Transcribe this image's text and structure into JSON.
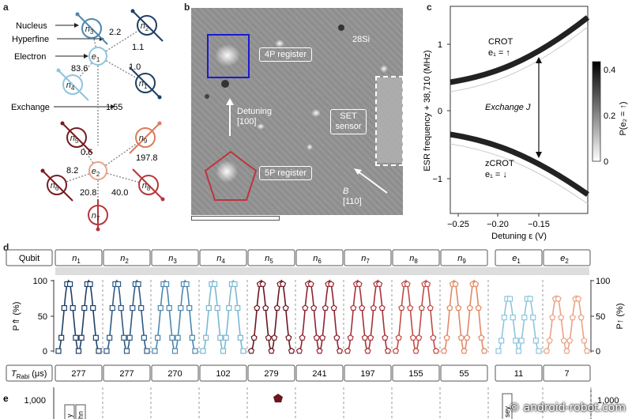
{
  "panel_labels": {
    "a": "a",
    "b": "b",
    "c": "c",
    "d": "d",
    "e": "e"
  },
  "panel_a": {
    "left_labels": {
      "nucleus": "Nucleus",
      "hyperfine": "Hyperfine",
      "electron": "Electron",
      "exchange": "Exchange"
    },
    "nodes": {
      "n1": "n",
      "n2": "n",
      "n3": "n",
      "n4": "n",
      "n5": "n",
      "n6": "n",
      "n7": "n",
      "n8": "n",
      "n9": "n",
      "e1": "e",
      "e2": "e"
    },
    "subs": {
      "n1": "1",
      "n2": "2",
      "n3": "3",
      "n4": "4",
      "n5": "5",
      "n6": "6",
      "n7": "7",
      "n8": "8",
      "n9": "9",
      "e1": "1",
      "e2": "2"
    },
    "values": {
      "n3": "2.2",
      "n2": "1.1",
      "n4": "83.6",
      "n1": "1.0",
      "exchange": "1.55",
      "n5": "0.6",
      "n9": "197.8",
      "n6": "8.2",
      "n8": "40.0",
      "n7_left": "20.8"
    },
    "colors": {
      "dark_blue": "#1f3f66",
      "mid_blue": "#4d87b0",
      "light_blue": "#8ec6dc",
      "dark_red": "#7a1a22",
      "red": "#b5373c",
      "salmon": "#dd7a5a",
      "peach": "#e9a384"
    }
  },
  "panel_b": {
    "isotope": "28Si",
    "reg4p": "4P register",
    "reg5p": "5P register",
    "set_sensor": "SET sensor",
    "detuning": "Detuning",
    "detuning_dir": "[100]",
    "b_label": "B",
    "b_dir": "[110]"
  },
  "panel_c": {
    "ylabel": "ESR frequency + 38,710 (MHz)",
    "xlabel": "Detuning ε (V)",
    "xticks": [
      "−0.25",
      "−0.20",
      "−0.15"
    ],
    "yticks": [
      "1",
      "0",
      "−1"
    ],
    "crot": "CROT",
    "crot_state": "e₁ = ↑",
    "zcrot": "zCROT",
    "zcrot_state": "e₁ = ↓",
    "exchange": "Exchange J",
    "cbar_label": "P(e₂ = ↑)",
    "cbar_ticks": [
      "0.4",
      "0.2",
      "0"
    ]
  },
  "panel_d": {
    "qubit_header": "Qubit",
    "qubits": [
      {
        "name": "n",
        "sub": "1",
        "color": "#1f3f66",
        "marker": "square",
        "trabi": "277"
      },
      {
        "name": "n",
        "sub": "2",
        "color": "#2e5a85",
        "marker": "square",
        "trabi": "277"
      },
      {
        "name": "n",
        "sub": "3",
        "color": "#4d87b0",
        "marker": "square",
        "trabi": "270"
      },
      {
        "name": "n",
        "sub": "4",
        "color": "#7bb8d2",
        "marker": "square",
        "trabi": "102"
      },
      {
        "name": "n",
        "sub": "5",
        "color": "#6b1620",
        "marker": "pentagon",
        "trabi": "279"
      },
      {
        "name": "n",
        "sub": "6",
        "color": "#8e2330",
        "marker": "pentagon",
        "trabi": "241"
      },
      {
        "name": "n",
        "sub": "7",
        "color": "#a63139",
        "marker": "pentagon",
        "trabi": "197"
      },
      {
        "name": "n",
        "sub": "8",
        "color": "#c04a45",
        "marker": "pentagon",
        "trabi": "155"
      },
      {
        "name": "n",
        "sub": "9",
        "color": "#e08a66",
        "marker": "pentagon",
        "trabi": "55"
      },
      {
        "name": "e",
        "sub": "1",
        "color": "#8ec6dc",
        "marker": "square",
        "trabi": "11"
      },
      {
        "name": "e",
        "sub": "2",
        "color": "#e9a384",
        "marker": "pentagon",
        "trabi": "7"
      }
    ],
    "ylabel_left": "P⇑ (%)",
    "ylabel_right": "P↑ (%)",
    "yticks": [
      "100",
      "50",
      "0"
    ],
    "trabi_label": "T",
    "trabi_sub": "Rabi",
    "trabi_unit": " (μs)"
  },
  "panel_e": {
    "ytick": "1,000",
    "rot_labels": [
      "y",
      "hn",
      "sey"
    ]
  },
  "watermark": "© android-robot.com"
}
